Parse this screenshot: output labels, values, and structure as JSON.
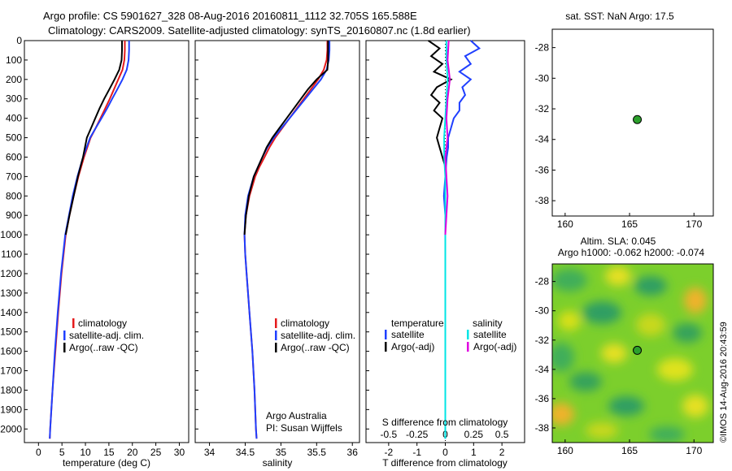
{
  "title_line1": "Argo profile: CS 5901627_328 08-Aug-2016 20160811_1112 32.705S 165.588E",
  "title_line2": "Climatology: CARS2009. Satellite-adjusted climatology: synTS_20160807.nc (1.8d earlier)",
  "credit_lines": [
    "Argo Australia",
    "PI: Susan Wijffels"
  ],
  "watermark": "©IMOS 14-Aug-2016 20:43:59",
  "colors": {
    "climatology": "#e41a1c",
    "satellite": "#1f3fff",
    "argo": "#000000",
    "sal_satellite": "#00e5e5",
    "sal_argo": "#e000e0",
    "float_marker": "#2ca02c"
  },
  "chart_data": [
    {
      "type": "line",
      "id": "temperature",
      "xlabel": "temperature (deg C)",
      "xlim": [
        -3,
        32
      ],
      "xticks": [
        0,
        5,
        10,
        15,
        20,
        25,
        30
      ],
      "ylim": [
        0,
        2070
      ],
      "yticks": [
        0,
        100,
        200,
        300,
        400,
        500,
        600,
        700,
        800,
        900,
        1000,
        1100,
        1200,
        1300,
        1400,
        1500,
        1600,
        1700,
        1800,
        1900,
        2000
      ],
      "legend": [
        "climatology",
        "satellite-adj. clim.",
        "Argo(..raw -QC)"
      ],
      "series": [
        {
          "name": "climatology",
          "depth": [
            0,
            50,
            100,
            150,
            200,
            250,
            300,
            350,
            400,
            450,
            500,
            600,
            700,
            800,
            900,
            1000,
            1200,
            1400,
            1600,
            1800,
            2000,
            2050
          ],
          "values": [
            18.4,
            18.4,
            18.3,
            17.9,
            17.0,
            16.1,
            15.2,
            14.2,
            13.2,
            12.2,
            11.1,
            9.7,
            8.5,
            7.5,
            6.6,
            5.8,
            4.9,
            4.2,
            3.6,
            3.0,
            2.5,
            2.4
          ]
        },
        {
          "name": "satellite-adj. clim.",
          "depth": [
            0,
            50,
            100,
            150,
            200,
            250,
            300,
            350,
            400,
            450,
            500,
            600,
            700,
            800,
            900,
            1000,
            1200,
            1400,
            1600,
            1800,
            2000,
            2050
          ],
          "values": [
            19.3,
            19.3,
            19.2,
            18.8,
            17.9,
            16.8,
            15.7,
            14.6,
            13.4,
            12.2,
            11.0,
            9.5,
            8.3,
            7.3,
            6.5,
            5.7,
            4.8,
            4.1,
            3.5,
            3.0,
            2.5,
            2.4
          ]
        },
        {
          "name": "Argo(..raw -QC)",
          "depth": [
            0,
            50,
            100,
            150,
            200,
            250,
            300,
            350,
            400,
            450,
            500,
            600,
            700,
            800,
            900,
            1000
          ],
          "values": [
            17.8,
            17.8,
            17.7,
            17.2,
            16.2,
            15.1,
            14.0,
            13.0,
            12.1,
            11.2,
            10.3,
            9.5,
            8.4,
            7.5,
            6.6,
            5.8
          ]
        }
      ]
    },
    {
      "type": "line",
      "id": "salinity",
      "xlabel": "salinity",
      "xlim": [
        33.8,
        36.1
      ],
      "xticks": [
        34,
        34.5,
        35,
        35.5,
        36
      ],
      "ylim": [
        0,
        2070
      ],
      "legend": [
        "climatology",
        "satellite-adj. clim.",
        "Argo(..raw -QC)"
      ],
      "series": [
        {
          "name": "climatology",
          "depth": [
            0,
            50,
            100,
            150,
            200,
            250,
            300,
            350,
            400,
            450,
            500,
            550,
            600,
            650,
            700,
            800,
            900,
            1000,
            1100,
            1200,
            1400,
            1600,
            1800,
            2000,
            2050
          ],
          "values": [
            35.65,
            35.65,
            35.64,
            35.6,
            35.52,
            35.42,
            35.32,
            35.22,
            35.12,
            35.02,
            34.92,
            34.84,
            34.77,
            34.7,
            34.64,
            34.56,
            34.51,
            34.49,
            34.5,
            34.52,
            34.56,
            34.6,
            34.63,
            34.65,
            34.66
          ]
        },
        {
          "name": "satellite-adj. clim.",
          "depth": [
            0,
            50,
            100,
            150,
            200,
            250,
            300,
            350,
            400,
            450,
            500,
            550,
            600,
            650,
            700,
            800,
            900,
            1000,
            1100,
            1200,
            1400,
            1600,
            1800,
            2000,
            2050
          ],
          "values": [
            35.68,
            35.68,
            35.67,
            35.64,
            35.56,
            35.45,
            35.34,
            35.23,
            35.12,
            35.01,
            34.9,
            34.81,
            34.74,
            34.68,
            34.62,
            34.54,
            34.5,
            34.49,
            34.5,
            34.52,
            34.56,
            34.6,
            34.63,
            34.65,
            34.66
          ]
        },
        {
          "name": "Argo(..raw -QC)",
          "depth": [
            0,
            50,
            100,
            150,
            200,
            250,
            300,
            350,
            400,
            450,
            500,
            550,
            600,
            650,
            700,
            800,
            900,
            1000
          ],
          "values": [
            35.66,
            35.66,
            35.66,
            35.65,
            35.5,
            35.38,
            35.28,
            35.18,
            35.08,
            34.98,
            34.88,
            34.8,
            34.74,
            34.68,
            34.62,
            34.55,
            34.51,
            34.49
          ]
        }
      ]
    },
    {
      "type": "line",
      "id": "difference",
      "xlabel": "T difference from climatology",
      "xlabel_top": "S difference from climatology",
      "xlim": [
        -2.8,
        2.8
      ],
      "xticks": [
        -2,
        -1,
        0,
        1,
        2
      ],
      "xticklabels_top": [
        "-0.5",
        "-0.25",
        "0",
        "0.25",
        "0.5"
      ],
      "ylim": [
        0,
        2070
      ],
      "legend_titles": [
        "temperature",
        "salinity"
      ],
      "legend": [
        "satellite",
        "Argo(-adj)",
        "satellite",
        "Argo(-adj)"
      ],
      "series": [
        {
          "name": "satellite",
          "group": "temperature",
          "depth": [
            0,
            40,
            80,
            120,
            160,
            200,
            240,
            280,
            320,
            360,
            400,
            450,
            500,
            550,
            600,
            700,
            800,
            900,
            1000,
            1200,
            1400,
            1600,
            1800,
            2000,
            2050
          ],
          "values": [
            0.9,
            1.2,
            0.7,
            0.9,
            0.5,
            0.9,
            0.6,
            0.7,
            0.5,
            0.5,
            0.3,
            0.2,
            0.1,
            0.1,
            0.05,
            0.0,
            -0.05,
            0.0,
            0.0,
            0.0,
            0.0,
            0.0,
            0.0,
            0.0,
            0.0
          ]
        },
        {
          "name": "Argo(-adj)",
          "group": "temperature",
          "depth": [
            0,
            40,
            80,
            120,
            160,
            200,
            240,
            280,
            320,
            360,
            400,
            450,
            500,
            550,
            600,
            650,
            700
          ],
          "values": [
            -0.6,
            -0.2,
            -0.5,
            -0.1,
            -0.4,
            0.2,
            -0.3,
            -0.5,
            -0.2,
            -0.4,
            -0.1,
            -0.2,
            -0.3,
            -0.2,
            -0.1,
            0.0,
            0.0
          ]
        },
        {
          "name": "satellite",
          "group": "salinity",
          "depth": [
            0,
            100,
            200,
            300,
            400,
            500,
            600,
            700,
            800,
            1000,
            1200,
            1400,
            1600,
            1800,
            2000,
            2050
          ],
          "values": [
            0.01,
            0.01,
            0.02,
            0.01,
            0.0,
            -0.01,
            -0.01,
            0.0,
            0.0,
            0.0,
            0.0,
            0.0,
            0.0,
            0.0,
            0.0,
            0.0
          ]
        },
        {
          "name": "Argo(-adj)",
          "group": "salinity",
          "depth": [
            0,
            100,
            200,
            300,
            400,
            500,
            600,
            700,
            800,
            900,
            1000
          ],
          "values": [
            0.03,
            0.02,
            0.04,
            0.02,
            0.01,
            0.02,
            0.0,
            0.01,
            0.02,
            0.01,
            0.0
          ]
        }
      ]
    },
    {
      "type": "scatter",
      "id": "sst_map",
      "title": "sat. SST: NaN Argo: 17.5",
      "xlim": [
        159,
        171.5
      ],
      "ylim": [
        -39,
        -26.8
      ],
      "xticks": [
        160,
        165,
        170
      ],
      "yticks": [
        -28,
        -30,
        -32,
        -34,
        -36,
        -38
      ],
      "float_position": {
        "lon": 165.6,
        "lat": -32.7
      }
    },
    {
      "type": "heatmap",
      "id": "sla_map",
      "title": "Altim. SLA: 0.045",
      "subtitle": "Argo h1000: -0.062 h2000: -0.074",
      "xlim": [
        159,
        171.5
      ],
      "ylim": [
        -39,
        -26.8
      ],
      "xticks": [
        160,
        165,
        170
      ],
      "yticks": [
        -28,
        -30,
        -32,
        -34,
        -36,
        -38
      ],
      "float_position": {
        "lon": 165.6,
        "lat": -32.7
      }
    }
  ]
}
